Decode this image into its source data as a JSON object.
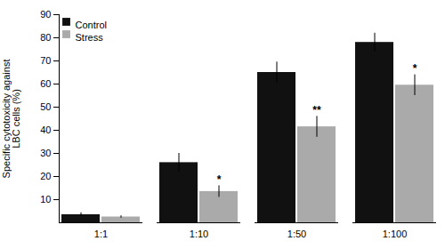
{
  "chart_data": {
    "type": "bar",
    "categories": [
      "1:1",
      "1:10",
      "1:50",
      "1:100"
    ],
    "series": [
      {
        "name": "Control",
        "color": "#111111",
        "values": [
          3.5,
          26.0,
          65.0,
          78.0
        ],
        "errors": [
          0.8,
          4.0,
          4.5,
          4.0
        ]
      },
      {
        "name": "Stress",
        "color": "#aaaaaa",
        "values": [
          2.5,
          13.5,
          41.5,
          59.5
        ],
        "errors": [
          0.5,
          2.5,
          4.5,
          4.5
        ]
      }
    ],
    "ylabel": "Specific cytotoxicity against\nLBC cells (%)",
    "ylim": [
      0,
      90
    ],
    "yticks": [
      10,
      20,
      30,
      40,
      50,
      60,
      70,
      80,
      90
    ],
    "annotations": [
      {
        "category": "1:10",
        "series": "Stress",
        "text": "*"
      },
      {
        "category": "1:50",
        "series": "Stress",
        "text": "**"
      },
      {
        "category": "1:100",
        "series": "Stress",
        "text": "*"
      }
    ],
    "legend": "upper left",
    "grid": false
  }
}
